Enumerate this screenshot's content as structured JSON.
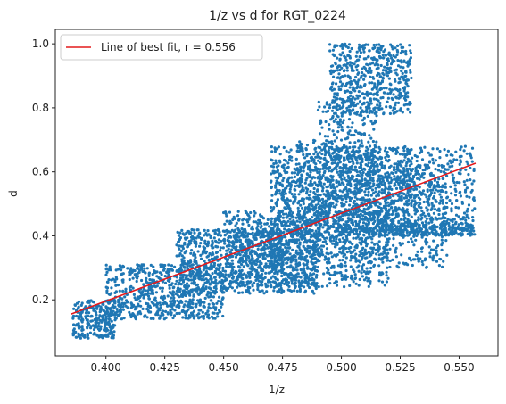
{
  "chart_data": {
    "type": "scatter",
    "title": "1/z vs d for RGT_0224",
    "xlabel": "1/z",
    "ylabel": "d",
    "xlim": [
      0.3785,
      0.5665
    ],
    "ylim": [
      0.025,
      1.045
    ],
    "xticks": [
      0.4,
      0.425,
      0.45,
      0.475,
      0.5,
      0.525,
      0.55
    ],
    "xtick_labels": [
      "0.400",
      "0.425",
      "0.450",
      "0.475",
      "0.500",
      "0.525",
      "0.550"
    ],
    "yticks": [
      0.2,
      0.4,
      0.6,
      0.8,
      1.0
    ],
    "ytick_labels": [
      "0.2",
      "0.4",
      "0.6",
      "0.8",
      "1.0"
    ],
    "grid": false,
    "legend": {
      "placement": "top-left",
      "entries": [
        "Line of best fit, r = 0.556"
      ]
    },
    "series": [
      {
        "kind": "scatter",
        "color": "#1f77b4",
        "clusters": [
          {
            "x": [
              0.386,
              0.404
            ],
            "y": [
              0.08,
              0.2
            ],
            "count": 260
          },
          {
            "x": [
              0.4,
              0.45
            ],
            "y": [
              0.14,
              0.31
            ],
            "count": 700
          },
          {
            "x": [
              0.43,
              0.49
            ],
            "y": [
              0.22,
              0.42
            ],
            "count": 800
          },
          {
            "x": [
              0.45,
              0.52
            ],
            "y": [
              0.24,
              0.48
            ],
            "count": 800
          },
          {
            "x": [
              0.47,
              0.545
            ],
            "y": [
              0.3,
              0.62
            ],
            "count": 900
          },
          {
            "x": [
              0.47,
              0.53
            ],
            "y": [
              0.4,
              0.68
            ],
            "count": 700
          },
          {
            "x": [
              0.5,
              0.557
            ],
            "y": [
              0.4,
              0.68
            ],
            "count": 700
          },
          {
            "x": [
              0.495,
              0.53
            ],
            "y": [
              0.78,
              1.0
            ],
            "count": 550
          },
          {
            "x": [
              0.49,
              0.515
            ],
            "y": [
              0.6,
              0.82
            ],
            "count": 200
          },
          {
            "x": [
              0.48,
              0.5
            ],
            "y": [
              0.5,
              0.7
            ],
            "count": 120
          },
          {
            "x": [
              0.455,
              0.475
            ],
            "y": [
              0.3,
              0.42
            ],
            "count": 160
          },
          {
            "x": [
              0.52,
              0.557
            ],
            "y": [
              0.4,
              0.44
            ],
            "count": 160
          }
        ]
      },
      {
        "kind": "line",
        "name": "Line of best fit, r = 0.556",
        "color": "#e41a1c",
        "x": [
          0.385,
          0.557
        ],
        "y": [
          0.155,
          0.627
        ]
      }
    ]
  }
}
